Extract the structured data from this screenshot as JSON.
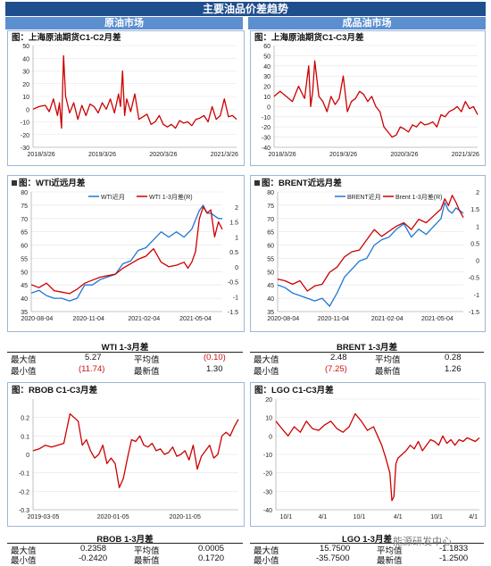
{
  "header": {
    "title": "主要油品价差趋势",
    "left_section": "原油市场",
    "right_section": "成品油市场"
  },
  "stats_wti": {
    "title": "WTI 1-3月差",
    "max_label": "最大值",
    "max": "5.27",
    "min_label": "最小值",
    "min": "(11.74)",
    "avg_label": "平均值",
    "avg": "(0.10)",
    "latest_label": "最新值",
    "latest": "1.30"
  },
  "stats_brent": {
    "title": "BRENT 1-3月差",
    "max_label": "最大值",
    "max": "2.48",
    "min_label": "最小值",
    "min": "(7.25)",
    "avg_label": "平均值",
    "avg": "0.28",
    "latest_label": "最新值",
    "latest": "1.26"
  },
  "stats_rbob": {
    "title": "RBOB 1-3月差",
    "max_label": "最大值",
    "max": "0.2358",
    "min_label": "最小值",
    "min": "-0.2420",
    "avg_label": "平均值",
    "avg": "0.0005",
    "latest_label": "最新值",
    "latest": "0.1720"
  },
  "stats_lgo": {
    "title": "LGO 1-3月差",
    "max_label": "最大值",
    "max": "15.7500",
    "min_label": "最小值",
    "min": "-35.7500",
    "avg_label": "平均值",
    "avg": "-1.1833",
    "latest_label": "最新值",
    "latest": "-1.2500"
  },
  "watermark": "能源研发中心",
  "colors": {
    "red": "#cc0000",
    "blue": "#1f77d4",
    "banner": "#1f4e8c",
    "section": "#5b8fd0"
  },
  "chart_data": [
    {
      "id": "sc",
      "type": "line",
      "title": "图：上海原油期货C1-C2月差",
      "ylim": [
        -30,
        50
      ],
      "yticks": [
        50,
        40,
        30,
        20,
        10,
        0,
        -10,
        -20,
        -30
      ],
      "xlim": [
        0,
        100
      ],
      "xticks": [
        {
          "x": 4,
          "label": "2018/3/26"
        },
        {
          "x": 34,
          "label": "2019/3/26"
        },
        {
          "x": 64,
          "label": "2020/3/26"
        },
        {
          "x": 94,
          "label": "2021/3/26"
        }
      ],
      "series": [
        {
          "color": "#cc0000",
          "x": [
            0,
            3,
            6,
            8,
            10,
            12,
            13,
            14,
            15,
            16,
            18,
            20,
            22,
            24,
            26,
            28,
            30,
            32,
            34,
            36,
            38,
            40,
            42,
            43,
            44,
            45,
            46,
            48,
            50,
            52,
            54,
            56,
            58,
            60,
            62,
            64,
            66,
            68,
            70,
            72,
            74,
            76,
            78,
            80,
            82,
            84,
            86,
            88,
            90,
            92,
            94,
            96,
            98,
            100
          ],
          "y": [
            0,
            2,
            3,
            -2,
            8,
            -5,
            5,
            -15,
            42,
            10,
            -3,
            5,
            -8,
            3,
            -5,
            4,
            2,
            -3,
            5,
            0,
            8,
            -3,
            12,
            2,
            30,
            -5,
            8,
            -2,
            12,
            -8,
            -6,
            -4,
            -12,
            -10,
            -5,
            -12,
            -14,
            -12,
            -15,
            -9,
            -11,
            -10,
            -13,
            -8,
            -7,
            -5,
            -10,
            2,
            -8,
            -5,
            8,
            -6,
            -5,
            -8
          ]
        }
      ]
    },
    {
      "id": "sc3",
      "type": "line",
      "title": "图：上海原油期货C1-C3月差",
      "ylim": [
        -40,
        60
      ],
      "yticks": [
        60,
        50,
        40,
        30,
        20,
        10,
        0,
        -10,
        -20,
        -30,
        -40
      ],
      "xlim": [
        0,
        100
      ],
      "xticks": [
        {
          "x": 4,
          "label": "2018/3/26"
        },
        {
          "x": 34,
          "label": "2019/3/26"
        },
        {
          "x": 64,
          "label": "2020/3/26"
        },
        {
          "x": 94,
          "label": "2021/3/26"
        }
      ],
      "series": [
        {
          "color": "#cc0000",
          "x": [
            0,
            3,
            6,
            9,
            12,
            15,
            17,
            18,
            19,
            20,
            22,
            24,
            26,
            28,
            30,
            32,
            34,
            36,
            38,
            40,
            42,
            44,
            46,
            48,
            50,
            52,
            54,
            56,
            58,
            60,
            62,
            64,
            66,
            68,
            70,
            72,
            74,
            76,
            78,
            80,
            82,
            84,
            86,
            88,
            90,
            92,
            94,
            96,
            98,
            100
          ],
          "y": [
            10,
            15,
            10,
            5,
            20,
            8,
            40,
            0,
            15,
            45,
            10,
            5,
            -5,
            10,
            2,
            8,
            30,
            -5,
            5,
            8,
            15,
            12,
            5,
            10,
            0,
            -5,
            -20,
            -25,
            -30,
            -28,
            -20,
            -22,
            -25,
            -18,
            -20,
            -15,
            -18,
            -17,
            -15,
            -20,
            -8,
            -10,
            -5,
            -3,
            0,
            -5,
            5,
            -2,
            0,
            -8
          ]
        }
      ]
    },
    {
      "id": "wti",
      "type": "line",
      "title": "图：WTI近远月差",
      "ylim": [
        35,
        80
      ],
      "yticks": [
        80,
        75,
        70,
        65,
        60,
        55,
        50,
        45,
        40,
        35
      ],
      "y2lim": [
        -1.5,
        2.5
      ],
      "y2ticks": [
        2,
        1.5,
        1,
        0.5,
        0,
        -0.5,
        -1,
        -1.5
      ],
      "xlim": [
        0,
        100
      ],
      "xticks": [
        {
          "x": 3,
          "label": "2020-08-04"
        },
        {
          "x": 30,
          "label": "2020-11-04"
        },
        {
          "x": 59,
          "label": "2021-02-04"
        },
        {
          "x": 86,
          "label": "2021-05-04"
        }
      ],
      "legend": [
        {
          "label": "WTI近月",
          "color": "#1f77d4"
        },
        {
          "label": "WTI 1-3月差(R)",
          "color": "#cc0000"
        }
      ],
      "series": [
        {
          "name": "WTI近月",
          "color": "#1f77d4",
          "axis": "left",
          "x": [
            0,
            4,
            8,
            12,
            16,
            20,
            24,
            28,
            32,
            36,
            40,
            44,
            48,
            52,
            56,
            60,
            64,
            68,
            72,
            76,
            80,
            84,
            88,
            90,
            92,
            94,
            96,
            98,
            100
          ],
          "y": [
            42,
            43,
            41,
            40,
            40,
            39,
            40,
            45,
            45,
            47,
            48,
            49,
            53,
            54,
            58,
            59,
            62,
            65,
            63,
            65,
            63,
            66,
            73,
            75,
            72,
            72,
            71,
            70,
            70
          ]
        },
        {
          "name": "WTI 1-3月差(R)",
          "color": "#cc0000",
          "axis": "right",
          "x": [
            0,
            4,
            8,
            12,
            16,
            20,
            24,
            28,
            32,
            36,
            40,
            44,
            48,
            52,
            56,
            60,
            64,
            68,
            72,
            76,
            80,
            82,
            84,
            86,
            88,
            90,
            92,
            94,
            96,
            98,
            100
          ],
          "y": [
            -0.6,
            -0.7,
            -0.55,
            -0.8,
            -0.85,
            -0.9,
            -0.75,
            -0.55,
            -0.45,
            -0.35,
            -0.3,
            -0.25,
            -0.05,
            0.1,
            0.25,
            0.35,
            0.6,
            0.15,
            0.0,
            0.05,
            0.15,
            -0.05,
            0.15,
            0.5,
            1.6,
            2.0,
            1.8,
            1.9,
            1.0,
            1.5,
            1.25
          ]
        }
      ]
    },
    {
      "id": "brent",
      "type": "line",
      "title": "图：BRENT近远月差",
      "ylim": [
        35,
        80
      ],
      "yticks": [
        80,
        75,
        70,
        65,
        60,
        55,
        50,
        45,
        40,
        35
      ],
      "y2lim": [
        -1.5,
        2
      ],
      "y2ticks": [
        2,
        1.5,
        1,
        0.5,
        0,
        -0.5,
        -1,
        -1.5
      ],
      "xlim": [
        0,
        100
      ],
      "xticks": [
        {
          "x": 3,
          "label": "2020-08-04"
        },
        {
          "x": 30,
          "label": "2020-11-04"
        },
        {
          "x": 59,
          "label": "2021-02-04"
        },
        {
          "x": 86,
          "label": "2021-05-04"
        }
      ],
      "legend": [
        {
          "label": "BRENT近月",
          "color": "#1f77d4"
        },
        {
          "label": "Brent 1-3月差(R)",
          "color": "#cc0000"
        }
      ],
      "series": [
        {
          "name": "BRENT近月",
          "color": "#1f77d4",
          "axis": "left",
          "x": [
            0,
            4,
            8,
            12,
            16,
            20,
            24,
            28,
            32,
            36,
            40,
            44,
            48,
            52,
            56,
            60,
            64,
            68,
            72,
            76,
            80,
            84,
            88,
            90,
            92,
            94,
            96,
            98,
            100
          ],
          "y": [
            45,
            44,
            42,
            41,
            40,
            39,
            40,
            37,
            42,
            48,
            51,
            54,
            55,
            60,
            62,
            63,
            66,
            68,
            63,
            66,
            64,
            67,
            70,
            76,
            73,
            72,
            74,
            73,
            72
          ]
        },
        {
          "name": "Brent 1-3月差(R)",
          "color": "#cc0000",
          "axis": "right",
          "x": [
            0,
            4,
            8,
            12,
            16,
            20,
            24,
            28,
            32,
            36,
            40,
            44,
            48,
            52,
            56,
            60,
            64,
            68,
            72,
            76,
            80,
            84,
            88,
            90,
            92,
            94,
            96,
            98,
            100
          ],
          "y": [
            -0.55,
            -0.6,
            -0.7,
            -0.6,
            -0.9,
            -0.75,
            -0.7,
            -0.35,
            -0.2,
            0.1,
            0.25,
            0.3,
            0.6,
            0.9,
            0.7,
            0.85,
            1.0,
            1.1,
            0.9,
            1.2,
            1.1,
            1.3,
            1.5,
            1.8,
            1.6,
            1.9,
            1.7,
            1.45,
            1.25
          ]
        }
      ]
    },
    {
      "id": "rbob",
      "type": "line",
      "title": "图：RBOB C1-C3月差",
      "ylim": [
        -0.3,
        0.3
      ],
      "yticks": [
        0.2,
        0.1,
        0,
        -0.1,
        -0.2,
        -0.3
      ],
      "xlim": [
        0,
        100
      ],
      "xticks": [
        {
          "x": 5,
          "label": "2019-03-05"
        },
        {
          "x": 39,
          "label": "2020-01-05"
        },
        {
          "x": 74,
          "label": "2020-11-05"
        }
      ],
      "series": [
        {
          "color": "#cc0000",
          "x": [
            0,
            3,
            6,
            9,
            12,
            15,
            18,
            20,
            22,
            24,
            26,
            28,
            30,
            32,
            34,
            36,
            38,
            40,
            42,
            44,
            46,
            48,
            50,
            52,
            54,
            56,
            58,
            60,
            62,
            64,
            66,
            68,
            70,
            72,
            74,
            76,
            78,
            80,
            82,
            84,
            86,
            88,
            90,
            92,
            94,
            96,
            98,
            100
          ],
          "y": [
            0.02,
            0.03,
            0.05,
            0.04,
            0.05,
            0.06,
            0.22,
            0.2,
            0.18,
            0.05,
            0.08,
            0.02,
            -0.02,
            0.0,
            0.05,
            -0.05,
            -0.02,
            -0.05,
            -0.18,
            -0.13,
            -0.02,
            0.08,
            0.07,
            0.1,
            0.05,
            0.04,
            0.06,
            0.02,
            0.03,
            0.0,
            0.01,
            0.04,
            -0.01,
            0.0,
            0.02,
            -0.03,
            0.05,
            -0.08,
            -0.01,
            0.02,
            0.05,
            -0.02,
            0.0,
            0.1,
            0.12,
            0.1,
            0.15,
            0.19
          ]
        }
      ]
    },
    {
      "id": "lgo",
      "type": "line",
      "title": "图：LGO C1-C3月差",
      "ylim": [
        -40,
        20
      ],
      "yticks": [
        20,
        10,
        0,
        -10,
        -20,
        -30,
        -40
      ],
      "xlim": [
        0,
        100
      ],
      "xticks": [
        {
          "x": 5,
          "label": "10/1"
        },
        {
          "x": 23,
          "label": "4/1"
        },
        {
          "x": 41,
          "label": "10/1"
        },
        {
          "x": 60,
          "label": "4/1"
        },
        {
          "x": 79,
          "label": "10/1"
        },
        {
          "x": 97,
          "label": "4/1"
        }
      ],
      "series": [
        {
          "color": "#cc0000",
          "x": [
            0,
            3,
            6,
            9,
            12,
            15,
            18,
            21,
            24,
            27,
            30,
            33,
            36,
            39,
            42,
            45,
            48,
            50,
            52,
            54,
            56,
            57,
            58,
            59,
            60,
            62,
            64,
            66,
            68,
            70,
            72,
            74,
            76,
            78,
            80,
            82,
            84,
            86,
            88,
            90,
            92,
            94,
            96,
            98,
            100
          ],
          "y": [
            8,
            4,
            0,
            5,
            2,
            8,
            4,
            3,
            6,
            8,
            4,
            2,
            5,
            12,
            8,
            3,
            5,
            0,
            -5,
            -12,
            -20,
            -35,
            -33,
            -15,
            -12,
            -10,
            -8,
            -5,
            -7,
            -3,
            -8,
            -5,
            -2,
            -3,
            -5,
            0,
            -4,
            -2,
            -5,
            -2,
            -3,
            -1,
            -2,
            -3,
            -1
          ]
        }
      ]
    }
  ]
}
